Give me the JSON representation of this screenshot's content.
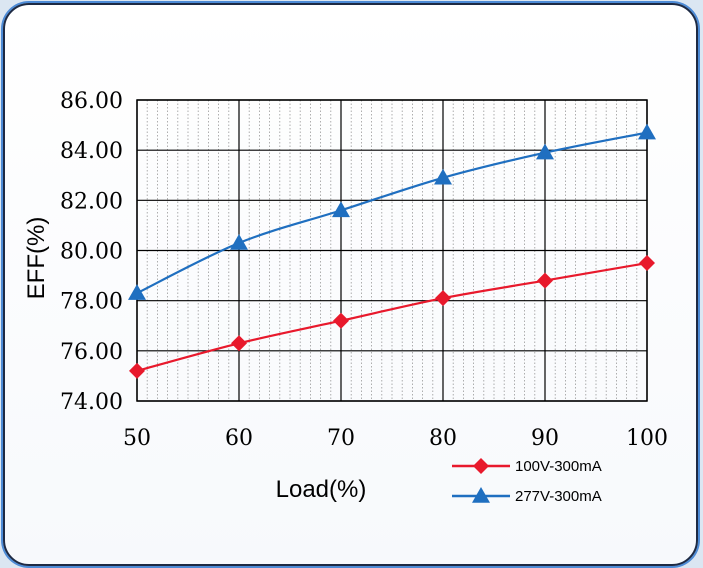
{
  "chart_data": {
    "type": "line",
    "title": "",
    "xlabel": "Load(%)",
    "ylabel": "EFF(%)",
    "x": [
      50,
      60,
      70,
      80,
      90,
      100
    ],
    "xlim": [
      50,
      100
    ],
    "ylim": [
      74,
      86
    ],
    "x_ticks": [
      "50",
      "60",
      "70",
      "80",
      "90",
      "100"
    ],
    "y_ticks": [
      "74.00",
      "76.00",
      "78.00",
      "80.00",
      "82.00",
      "84.00",
      "86.00"
    ],
    "grid": true,
    "legend_position": "bottom-right",
    "series": [
      {
        "name": "100V-300mA",
        "values": [
          75.2,
          76.3,
          77.2,
          78.1,
          78.8,
          79.5
        ],
        "color": "#e8192c",
        "marker": "diamond"
      },
      {
        "name": "277V-300mA",
        "values": [
          78.3,
          80.3,
          81.6,
          82.9,
          83.9,
          84.7
        ],
        "color": "#1f6fc0",
        "marker": "triangle"
      }
    ]
  }
}
